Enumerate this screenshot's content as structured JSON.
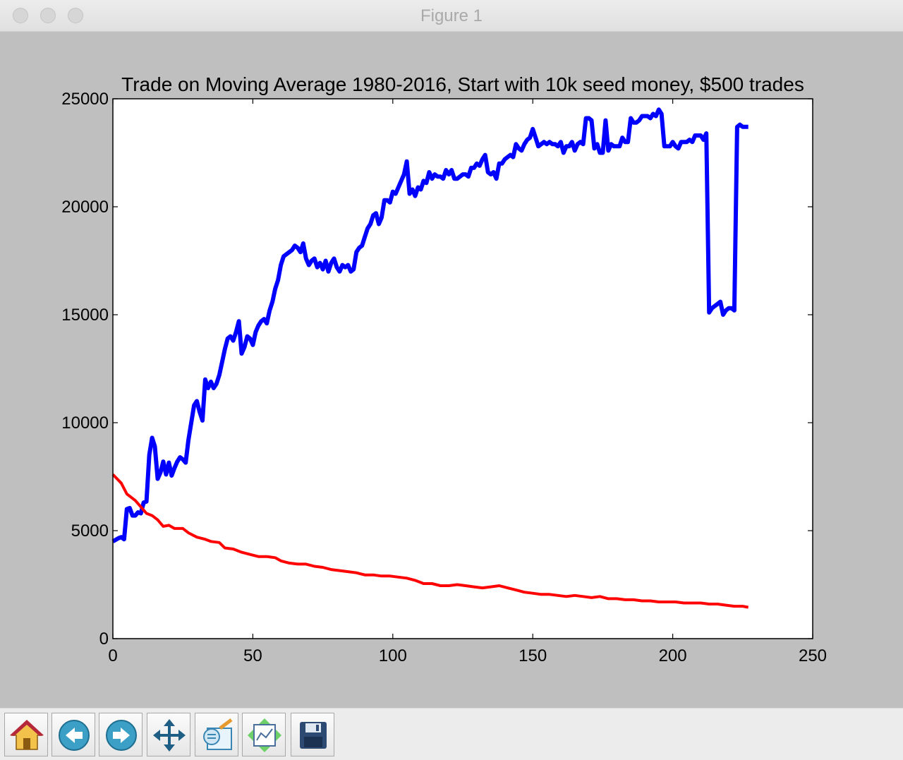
{
  "window": {
    "title": "Figure 1"
  },
  "toolbar": {
    "buttons": [
      {
        "name": "home-button",
        "icon": "home-icon"
      },
      {
        "name": "back-button",
        "icon": "back-arrow-icon"
      },
      {
        "name": "forward-button",
        "icon": "forward-arrow-icon"
      },
      {
        "name": "pan-button",
        "icon": "move-arrows-icon"
      },
      {
        "name": "zoom-button",
        "icon": "zoom-rect-icon"
      },
      {
        "name": "subplots-button",
        "icon": "subplots-icon"
      },
      {
        "name": "save-button",
        "icon": "floppy-disk-icon"
      }
    ]
  },
  "chart_data": {
    "type": "line",
    "title": "Trade on Moving Average 1980-2016, Start with 10k seed money, $500 trades",
    "xlabel": "",
    "ylabel": "",
    "xlim": [
      0,
      250
    ],
    "ylim": [
      0,
      25000
    ],
    "xticks": [
      0,
      50,
      100,
      150,
      200,
      250
    ],
    "yticks": [
      0,
      5000,
      10000,
      15000,
      20000,
      25000
    ],
    "grid": false,
    "series": [
      {
        "color": "#0000ff",
        "points": [
          [
            0,
            4500
          ],
          [
            2,
            4650
          ],
          [
            3,
            4700
          ],
          [
            4,
            4600
          ],
          [
            5,
            6000
          ],
          [
            6,
            6050
          ],
          [
            7,
            5700
          ],
          [
            8,
            5700
          ],
          [
            9,
            5850
          ],
          [
            10,
            5800
          ],
          [
            11,
            6300
          ],
          [
            12,
            6350
          ],
          [
            13,
            8500
          ],
          [
            14,
            9300
          ],
          [
            15,
            8900
          ],
          [
            16,
            7400
          ],
          [
            17,
            7700
          ],
          [
            18,
            8200
          ],
          [
            19,
            7600
          ],
          [
            20,
            8150
          ],
          [
            21,
            7550
          ],
          [
            22,
            7900
          ],
          [
            23,
            8200
          ],
          [
            24,
            8400
          ],
          [
            25,
            8300
          ],
          [
            26,
            8150
          ],
          [
            27,
            9200
          ],
          [
            28,
            10000
          ],
          [
            29,
            10800
          ],
          [
            30,
            11000
          ],
          [
            31,
            10500
          ],
          [
            32,
            10100
          ],
          [
            33,
            12000
          ],
          [
            34,
            11600
          ],
          [
            35,
            11900
          ],
          [
            36,
            11600
          ],
          [
            37,
            11800
          ],
          [
            38,
            12200
          ],
          [
            39,
            12800
          ],
          [
            40,
            13400
          ],
          [
            41,
            13900
          ],
          [
            42,
            14000
          ],
          [
            43,
            13800
          ],
          [
            44,
            14200
          ],
          [
            45,
            14700
          ],
          [
            46,
            13200
          ],
          [
            47,
            13500
          ],
          [
            48,
            14000
          ],
          [
            49,
            13900
          ],
          [
            50,
            13600
          ],
          [
            51,
            14200
          ],
          [
            52,
            14500
          ],
          [
            53,
            14700
          ],
          [
            54,
            14800
          ],
          [
            55,
            14600
          ],
          [
            56,
            15200
          ],
          [
            57,
            15600
          ],
          [
            58,
            16200
          ],
          [
            59,
            16600
          ],
          [
            60,
            17300
          ],
          [
            61,
            17700
          ],
          [
            62,
            17800
          ],
          [
            63,
            17900
          ],
          [
            64,
            18000
          ],
          [
            65,
            18200
          ],
          [
            66,
            18100
          ],
          [
            67,
            17900
          ],
          [
            68,
            18300
          ],
          [
            69,
            17600
          ],
          [
            70,
            17300
          ],
          [
            71,
            17500
          ],
          [
            72,
            17600
          ],
          [
            73,
            17200
          ],
          [
            74,
            17400
          ],
          [
            75,
            17100
          ],
          [
            76,
            17500
          ],
          [
            77,
            17000
          ],
          [
            78,
            17400
          ],
          [
            79,
            17600
          ],
          [
            80,
            17200
          ],
          [
            81,
            17000
          ],
          [
            82,
            17300
          ],
          [
            83,
            17200
          ],
          [
            84,
            17300
          ],
          [
            85,
            17000
          ],
          [
            86,
            17100
          ],
          [
            87,
            17900
          ],
          [
            88,
            18100
          ],
          [
            89,
            18200
          ],
          [
            90,
            18600
          ],
          [
            91,
            19000
          ],
          [
            92,
            19200
          ],
          [
            93,
            19600
          ],
          [
            94,
            19700
          ],
          [
            95,
            19200
          ],
          [
            96,
            19500
          ],
          [
            97,
            20300
          ],
          [
            98,
            20300
          ],
          [
            99,
            20200
          ],
          [
            100,
            20700
          ],
          [
            101,
            20600
          ],
          [
            102,
            20900
          ],
          [
            103,
            21200
          ],
          [
            104,
            21500
          ],
          [
            105,
            22100
          ],
          [
            106,
            20600
          ],
          [
            107,
            20800
          ],
          [
            108,
            20500
          ],
          [
            109,
            20900
          ],
          [
            110,
            20800
          ],
          [
            111,
            21200
          ],
          [
            112,
            21100
          ],
          [
            113,
            21600
          ],
          [
            114,
            21300
          ],
          [
            115,
            21500
          ],
          [
            116,
            21400
          ],
          [
            117,
            21400
          ],
          [
            118,
            21300
          ],
          [
            119,
            21700
          ],
          [
            120,
            21500
          ],
          [
            121,
            21700
          ],
          [
            122,
            21300
          ],
          [
            123,
            21300
          ],
          [
            124,
            21400
          ],
          [
            125,
            21500
          ],
          [
            126,
            21500
          ],
          [
            127,
            21400
          ],
          [
            128,
            21800
          ],
          [
            129,
            21800
          ],
          [
            130,
            22000
          ],
          [
            131,
            21900
          ],
          [
            132,
            22200
          ],
          [
            133,
            22400
          ],
          [
            134,
            21600
          ],
          [
            135,
            21500
          ],
          [
            136,
            21600
          ],
          [
            137,
            21300
          ],
          [
            138,
            22000
          ],
          [
            139,
            22000
          ],
          [
            140,
            22200
          ],
          [
            141,
            22300
          ],
          [
            142,
            22400
          ],
          [
            143,
            22300
          ],
          [
            144,
            22900
          ],
          [
            145,
            22700
          ],
          [
            146,
            22600
          ],
          [
            147,
            22900
          ],
          [
            148,
            23100
          ],
          [
            149,
            23200
          ],
          [
            150,
            23600
          ],
          [
            151,
            23200
          ],
          [
            152,
            22800
          ],
          [
            153,
            22900
          ],
          [
            154,
            23000
          ],
          [
            155,
            22900
          ],
          [
            156,
            23000
          ],
          [
            157,
            22900
          ],
          [
            158,
            22900
          ],
          [
            159,
            22800
          ],
          [
            160,
            23000
          ],
          [
            161,
            22500
          ],
          [
            162,
            22800
          ],
          [
            163,
            22800
          ],
          [
            164,
            23000
          ],
          [
            165,
            22600
          ],
          [
            166,
            22900
          ],
          [
            167,
            23000
          ],
          [
            168,
            22900
          ],
          [
            169,
            24100
          ],
          [
            170,
            24100
          ],
          [
            171,
            24000
          ],
          [
            172,
            22700
          ],
          [
            173,
            22900
          ],
          [
            174,
            22500
          ],
          [
            175,
            22500
          ],
          [
            176,
            24000
          ],
          [
            177,
            22600
          ],
          [
            178,
            22900
          ],
          [
            179,
            22800
          ],
          [
            180,
            22800
          ],
          [
            181,
            22800
          ],
          [
            182,
            23200
          ],
          [
            183,
            23000
          ],
          [
            184,
            23000
          ],
          [
            185,
            24100
          ],
          [
            186,
            23900
          ],
          [
            187,
            23900
          ],
          [
            188,
            24000
          ],
          [
            189,
            24200
          ],
          [
            190,
            24200
          ],
          [
            191,
            24200
          ],
          [
            192,
            24100
          ],
          [
            193,
            24300
          ],
          [
            194,
            24200
          ],
          [
            195,
            24500
          ],
          [
            196,
            24300
          ],
          [
            197,
            22800
          ],
          [
            198,
            22800
          ],
          [
            199,
            22800
          ],
          [
            200,
            23000
          ],
          [
            201,
            22800
          ],
          [
            202,
            22700
          ],
          [
            203,
            23000
          ],
          [
            204,
            23000
          ],
          [
            205,
            23000
          ],
          [
            206,
            23100
          ],
          [
            207,
            23000
          ],
          [
            208,
            23300
          ],
          [
            209,
            23300
          ],
          [
            210,
            23300
          ],
          [
            211,
            23100
          ],
          [
            212,
            23400
          ],
          [
            213,
            15100
          ],
          [
            214,
            15300
          ],
          [
            215,
            15400
          ],
          [
            216,
            15500
          ],
          [
            217,
            15600
          ],
          [
            218,
            15000
          ],
          [
            219,
            15200
          ],
          [
            220,
            15300
          ],
          [
            221,
            15300
          ],
          [
            222,
            15200
          ],
          [
            223,
            23700
          ],
          [
            224,
            23800
          ],
          [
            225,
            23700
          ],
          [
            226,
            23700
          ],
          [
            227,
            23700
          ]
        ]
      },
      {
        "color": "#ff0000",
        "points": [
          [
            0,
            7600
          ],
          [
            3,
            7200
          ],
          [
            5,
            6700
          ],
          [
            8,
            6400
          ],
          [
            10,
            6100
          ],
          [
            12,
            5800
          ],
          [
            14,
            5700
          ],
          [
            16,
            5500
          ],
          [
            18,
            5200
          ],
          [
            20,
            5250
          ],
          [
            22,
            5100
          ],
          [
            25,
            5100
          ],
          [
            27,
            4900
          ],
          [
            30,
            4700
          ],
          [
            33,
            4600
          ],
          [
            35,
            4500
          ],
          [
            38,
            4450
          ],
          [
            40,
            4200
          ],
          [
            43,
            4150
          ],
          [
            46,
            4000
          ],
          [
            49,
            3900
          ],
          [
            52,
            3800
          ],
          [
            55,
            3800
          ],
          [
            58,
            3750
          ],
          [
            60,
            3600
          ],
          [
            63,
            3500
          ],
          [
            66,
            3450
          ],
          [
            69,
            3450
          ],
          [
            72,
            3350
          ],
          [
            75,
            3300
          ],
          [
            78,
            3200
          ],
          [
            81,
            3150
          ],
          [
            84,
            3100
          ],
          [
            87,
            3050
          ],
          [
            90,
            2950
          ],
          [
            93,
            2950
          ],
          [
            96,
            2900
          ],
          [
            99,
            2900
          ],
          [
            102,
            2850
          ],
          [
            105,
            2800
          ],
          [
            108,
            2700
          ],
          [
            111,
            2550
          ],
          [
            114,
            2550
          ],
          [
            117,
            2450
          ],
          [
            120,
            2450
          ],
          [
            123,
            2500
          ],
          [
            126,
            2450
          ],
          [
            129,
            2400
          ],
          [
            132,
            2350
          ],
          [
            135,
            2400
          ],
          [
            138,
            2450
          ],
          [
            141,
            2350
          ],
          [
            144,
            2250
          ],
          [
            147,
            2150
          ],
          [
            150,
            2100
          ],
          [
            153,
            2050
          ],
          [
            156,
            2050
          ],
          [
            159,
            2000
          ],
          [
            162,
            1950
          ],
          [
            165,
            2000
          ],
          [
            168,
            1950
          ],
          [
            171,
            1900
          ],
          [
            174,
            1950
          ],
          [
            177,
            1850
          ],
          [
            180,
            1850
          ],
          [
            183,
            1800
          ],
          [
            186,
            1800
          ],
          [
            189,
            1750
          ],
          [
            192,
            1750
          ],
          [
            195,
            1700
          ],
          [
            198,
            1700
          ],
          [
            201,
            1700
          ],
          [
            204,
            1650
          ],
          [
            207,
            1650
          ],
          [
            210,
            1650
          ],
          [
            213,
            1600
          ],
          [
            216,
            1600
          ],
          [
            219,
            1550
          ],
          [
            222,
            1500
          ],
          [
            225,
            1500
          ],
          [
            227,
            1450
          ]
        ]
      }
    ]
  }
}
